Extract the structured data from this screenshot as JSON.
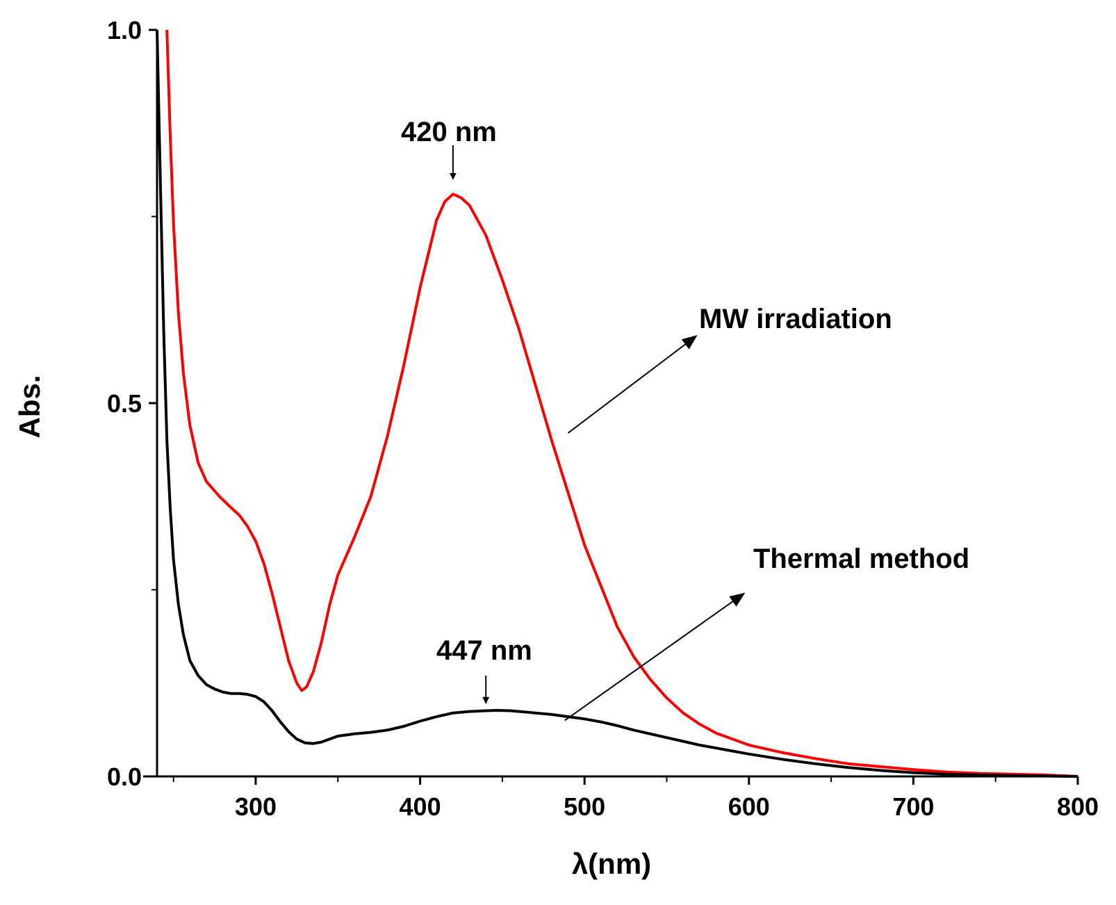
{
  "chart_data": {
    "type": "line",
    "title": "",
    "xlabel": "λ(nm)",
    "ylabel": "Abs.",
    "xlim": [
      240,
      800
    ],
    "ylim": [
      0,
      1.0
    ],
    "x_ticks": [
      300,
      400,
      500,
      600,
      700,
      800
    ],
    "x_tick_labels": [
      "300",
      "400",
      "500",
      "600",
      "700",
      "800"
    ],
    "x_minor_ticks": [
      250,
      350,
      450,
      550,
      650,
      750
    ],
    "y_ticks": [
      0.0,
      0.5,
      1.0
    ],
    "y_tick_labels": [
      "0.0",
      "0.5",
      "1.0"
    ],
    "y_minor_ticks": [
      0.25,
      0.75
    ],
    "grid": false,
    "series": [
      {
        "name": "MW irradiation",
        "color": "#ff0000",
        "points": [
          [
            246,
            1.0
          ],
          [
            248,
            0.86
          ],
          [
            250,
            0.74
          ],
          [
            253,
            0.62
          ],
          [
            256,
            0.54
          ],
          [
            260,
            0.47
          ],
          [
            265,
            0.42
          ],
          [
            270,
            0.395
          ],
          [
            278,
            0.375
          ],
          [
            285,
            0.36
          ],
          [
            290,
            0.35
          ],
          [
            295,
            0.335
          ],
          [
            300,
            0.315
          ],
          [
            305,
            0.285
          ],
          [
            310,
            0.245
          ],
          [
            315,
            0.2
          ],
          [
            320,
            0.155
          ],
          [
            325,
            0.125
          ],
          [
            328,
            0.115
          ],
          [
            331,
            0.12
          ],
          [
            335,
            0.14
          ],
          [
            340,
            0.18
          ],
          [
            345,
            0.23
          ],
          [
            350,
            0.27
          ],
          [
            360,
            0.32
          ],
          [
            370,
            0.375
          ],
          [
            380,
            0.455
          ],
          [
            390,
            0.55
          ],
          [
            400,
            0.655
          ],
          [
            410,
            0.745
          ],
          [
            415,
            0.77
          ],
          [
            420,
            0.78
          ],
          [
            425,
            0.775
          ],
          [
            430,
            0.765
          ],
          [
            440,
            0.725
          ],
          [
            450,
            0.665
          ],
          [
            460,
            0.6
          ],
          [
            470,
            0.525
          ],
          [
            480,
            0.45
          ],
          [
            490,
            0.38
          ],
          [
            500,
            0.31
          ],
          [
            510,
            0.255
          ],
          [
            520,
            0.2
          ],
          [
            530,
            0.16
          ],
          [
            540,
            0.13
          ],
          [
            550,
            0.105
          ],
          [
            560,
            0.085
          ],
          [
            570,
            0.07
          ],
          [
            580,
            0.058
          ],
          [
            590,
            0.05
          ],
          [
            600,
            0.042
          ],
          [
            620,
            0.032
          ],
          [
            640,
            0.024
          ],
          [
            660,
            0.017
          ],
          [
            680,
            0.013
          ],
          [
            700,
            0.009
          ],
          [
            720,
            0.006
          ],
          [
            740,
            0.004
          ],
          [
            760,
            0.003
          ],
          [
            780,
            0.002
          ],
          [
            800,
            0.0
          ]
        ]
      },
      {
        "name": "Thermal method",
        "color": "#000000",
        "points": [
          [
            240,
            1.0
          ],
          [
            242,
            0.8
          ],
          [
            244,
            0.6
          ],
          [
            246,
            0.45
          ],
          [
            248,
            0.36
          ],
          [
            250,
            0.29
          ],
          [
            253,
            0.23
          ],
          [
            256,
            0.19
          ],
          [
            260,
            0.155
          ],
          [
            265,
            0.135
          ],
          [
            270,
            0.123
          ],
          [
            275,
            0.117
          ],
          [
            280,
            0.113
          ],
          [
            285,
            0.111
          ],
          [
            290,
            0.111
          ],
          [
            295,
            0.11
          ],
          [
            300,
            0.107
          ],
          [
            305,
            0.1
          ],
          [
            310,
            0.088
          ],
          [
            315,
            0.073
          ],
          [
            320,
            0.06
          ],
          [
            325,
            0.05
          ],
          [
            330,
            0.045
          ],
          [
            335,
            0.044
          ],
          [
            340,
            0.046
          ],
          [
            345,
            0.05
          ],
          [
            350,
            0.054
          ],
          [
            360,
            0.057
          ],
          [
            370,
            0.059
          ],
          [
            380,
            0.062
          ],
          [
            390,
            0.067
          ],
          [
            400,
            0.074
          ],
          [
            410,
            0.08
          ],
          [
            420,
            0.085
          ],
          [
            430,
            0.087
          ],
          [
            440,
            0.088
          ],
          [
            447,
            0.0885
          ],
          [
            455,
            0.088
          ],
          [
            470,
            0.085
          ],
          [
            480,
            0.083
          ],
          [
            490,
            0.08
          ],
          [
            500,
            0.077
          ],
          [
            510,
            0.073
          ],
          [
            520,
            0.068
          ],
          [
            530,
            0.062
          ],
          [
            540,
            0.057
          ],
          [
            550,
            0.052
          ],
          [
            560,
            0.047
          ],
          [
            570,
            0.042
          ],
          [
            580,
            0.038
          ],
          [
            590,
            0.034
          ],
          [
            600,
            0.03
          ],
          [
            620,
            0.023
          ],
          [
            640,
            0.017
          ],
          [
            660,
            0.012
          ],
          [
            680,
            0.008
          ],
          [
            700,
            0.005
          ],
          [
            720,
            0.003
          ],
          [
            740,
            0.002
          ],
          [
            760,
            0.001
          ],
          [
            780,
            0.0005
          ],
          [
            800,
            0.0
          ]
        ]
      }
    ],
    "annotations": [
      {
        "id": "peak-420",
        "text": "420 nm",
        "points_to": [
          420,
          0.8
        ]
      },
      {
        "id": "peak-447",
        "text": "447 nm",
        "points_to": [
          440,
          0.098
        ]
      },
      {
        "id": "label-mw",
        "text": "MW irradiation",
        "arrow_from": [
          490,
          0.46
        ],
        "arrow_to": [
          568,
          0.59
        ]
      },
      {
        "id": "label-thermal",
        "text": "Thermal method",
        "arrow_from": [
          488,
          0.075
        ],
        "arrow_to": [
          597,
          0.245
        ]
      }
    ]
  }
}
